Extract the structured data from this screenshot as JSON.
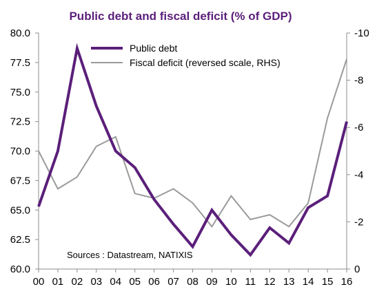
{
  "chart_data": {
    "type": "line",
    "title": "Public debt and fiscal deficit (% of GDP)",
    "source": "Sources : Datastream, NATIXIS",
    "categories": [
      "00",
      "01",
      "02",
      "03",
      "04",
      "05",
      "06",
      "07",
      "08",
      "09",
      "10",
      "11",
      "12",
      "13",
      "14",
      "15",
      "16"
    ],
    "left_axis": {
      "min": 60.0,
      "max": 80.0,
      "ticks": [
        "80.0",
        "77.5",
        "75.0",
        "72.5",
        "70.0",
        "67.5",
        "65.0",
        "62.5",
        "60.0"
      ]
    },
    "right_axis": {
      "min": 0,
      "max": -10,
      "reversed": true,
      "ticks": [
        "-10",
        "-8",
        "-6",
        "-4",
        "-2",
        "0"
      ]
    },
    "series": [
      {
        "name": "Public debt",
        "axis": "left",
        "color": "#5b1f7a",
        "values": [
          65.3,
          70.0,
          78.7,
          73.8,
          70.0,
          68.6,
          65.9,
          63.8,
          61.9,
          65.0,
          62.9,
          61.2,
          63.5,
          62.2,
          65.2,
          66.2,
          72.5
        ]
      },
      {
        "name": "Fiscal deficit (reversed scale, RHS)",
        "axis": "right",
        "color": "#9a9a9a",
        "values": [
          -5.0,
          -3.4,
          -3.9,
          -5.2,
          -5.6,
          -3.2,
          -3.0,
          -3.4,
          -2.8,
          -1.8,
          -3.1,
          -2.1,
          -2.3,
          -1.8,
          -2.8,
          -6.4,
          -8.9
        ]
      }
    ],
    "legend_position": "top-center",
    "grid": false
  }
}
